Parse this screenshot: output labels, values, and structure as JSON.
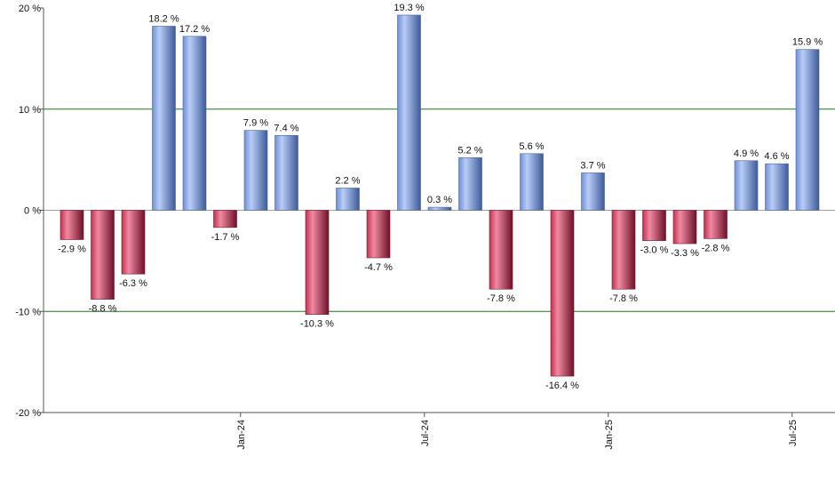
{
  "chart_data": {
    "type": "bar",
    "ylim": [
      -20,
      20
    ],
    "yticks": [
      20,
      10,
      0,
      -10,
      -20
    ],
    "ytick_labels": [
      "20 %",
      "10 %",
      "0 %",
      "-10 %",
      "-20 %"
    ],
    "gridlines": [
      10,
      -10
    ],
    "x_tick_labels": [
      {
        "index": 6,
        "label": "Jan-24"
      },
      {
        "index": 12,
        "label": "Jul-24"
      },
      {
        "index": 18,
        "label": "Jan-25"
      },
      {
        "index": 24,
        "label": "Jul-25"
      }
    ],
    "values": [
      -2.9,
      -8.8,
      -6.3,
      18.2,
      17.2,
      -1.7,
      7.9,
      7.4,
      -10.3,
      2.2,
      -4.7,
      19.3,
      0.3,
      5.2,
      -7.8,
      5.6,
      -16.4,
      3.7,
      -7.8,
      -3.0,
      -3.3,
      -2.8,
      4.9,
      4.6,
      15.9
    ],
    "value_labels": [
      "-2.9 %",
      "-8.8 %",
      "-6.3 %",
      "18.2 %",
      "17.2 %",
      "-1.7 %",
      "7.9 %",
      "7.4 %",
      "-10.3 %",
      "2.2 %",
      "-4.7 %",
      "19.3 %",
      "0.3 %",
      "5.2 %",
      "-7.8 %",
      "5.6 %",
      "-16.4 %",
      "3.7 %",
      "-7.8 %",
      "-3.0 %",
      "-3.3 %",
      "-2.8 %",
      "4.9 %",
      "4.6 %",
      "15.9 %"
    ],
    "positive_color": "#7f9fdc",
    "negative_color": "#b8324f",
    "gridline_color": "#1a7a1a",
    "grid": true,
    "legend": "none"
  }
}
